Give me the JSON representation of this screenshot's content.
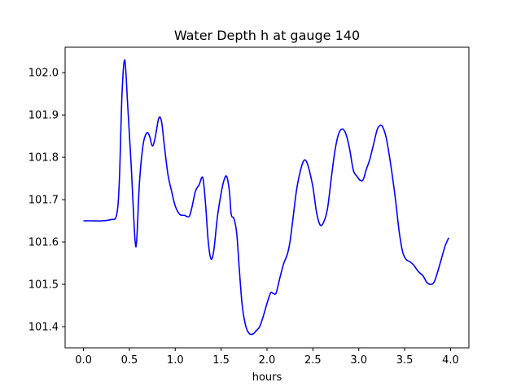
{
  "chart_data": {
    "type": "line",
    "title": "Water Depth h at gauge 140",
    "xlabel": "hours",
    "ylabel": "",
    "xlim": [
      -0.2,
      4.2
    ],
    "ylim": [
      101.35,
      102.06
    ],
    "xticks": [
      0.0,
      0.5,
      1.0,
      1.5,
      2.0,
      2.5,
      3.0,
      3.5,
      4.0
    ],
    "xtick_labels": [
      "0.0",
      "0.5",
      "1.0",
      "1.5",
      "2.0",
      "2.5",
      "3.0",
      "3.5",
      "4.0"
    ],
    "yticks": [
      101.4,
      101.5,
      101.6,
      101.7,
      101.8,
      101.9,
      102.0
    ],
    "ytick_labels": [
      "101.4",
      "101.5",
      "101.6",
      "101.7",
      "101.8",
      "101.9",
      "102.0"
    ],
    "grid": false,
    "series": [
      {
        "color": "#0000ff",
        "points": [
          [
            0.0,
            101.65
          ],
          [
            0.1,
            101.65
          ],
          [
            0.2,
            101.65
          ],
          [
            0.3,
            101.653
          ],
          [
            0.36,
            101.663
          ],
          [
            0.39,
            101.74
          ],
          [
            0.42,
            101.95
          ],
          [
            0.45,
            102.03
          ],
          [
            0.48,
            101.93
          ],
          [
            0.52,
            101.78
          ],
          [
            0.56,
            101.61
          ],
          [
            0.58,
            101.605
          ],
          [
            0.61,
            101.74
          ],
          [
            0.65,
            101.83
          ],
          [
            0.69,
            101.858
          ],
          [
            0.72,
            101.85
          ],
          [
            0.75,
            101.827
          ],
          [
            0.78,
            101.845
          ],
          [
            0.82,
            101.892
          ],
          [
            0.85,
            101.885
          ],
          [
            0.88,
            101.83
          ],
          [
            0.92,
            101.76
          ],
          [
            0.96,
            101.72
          ],
          [
            1.0,
            101.685
          ],
          [
            1.05,
            101.665
          ],
          [
            1.1,
            101.663
          ],
          [
            1.15,
            101.66
          ],
          [
            1.18,
            101.68
          ],
          [
            1.22,
            101.72
          ],
          [
            1.26,
            101.735
          ],
          [
            1.3,
            101.752
          ],
          [
            1.33,
            101.69
          ],
          [
            1.36,
            101.6
          ],
          [
            1.39,
            101.56
          ],
          [
            1.42,
            101.58
          ],
          [
            1.46,
            101.66
          ],
          [
            1.5,
            101.715
          ],
          [
            1.53,
            101.745
          ],
          [
            1.56,
            101.755
          ],
          [
            1.59,
            101.72
          ],
          [
            1.61,
            101.665
          ],
          [
            1.64,
            101.655
          ],
          [
            1.67,
            101.62
          ],
          [
            1.7,
            101.53
          ],
          [
            1.73,
            101.45
          ],
          [
            1.77,
            101.4
          ],
          [
            1.81,
            101.383
          ],
          [
            1.85,
            101.383
          ],
          [
            1.88,
            101.39
          ],
          [
            1.92,
            101.4
          ],
          [
            1.96,
            101.425
          ],
          [
            2.0,
            101.455
          ],
          [
            2.04,
            101.48
          ],
          [
            2.07,
            101.478
          ],
          [
            2.1,
            101.48
          ],
          [
            2.14,
            101.515
          ],
          [
            2.18,
            101.548
          ],
          [
            2.22,
            101.57
          ],
          [
            2.25,
            101.6
          ],
          [
            2.28,
            101.65
          ],
          [
            2.32,
            101.72
          ],
          [
            2.36,
            101.765
          ],
          [
            2.4,
            101.792
          ],
          [
            2.43,
            101.79
          ],
          [
            2.46,
            101.77
          ],
          [
            2.5,
            101.73
          ],
          [
            2.54,
            101.67
          ],
          [
            2.58,
            101.64
          ],
          [
            2.62,
            101.648
          ],
          [
            2.66,
            101.68
          ],
          [
            2.7,
            101.75
          ],
          [
            2.74,
            101.815
          ],
          [
            2.78,
            101.855
          ],
          [
            2.82,
            101.867
          ],
          [
            2.86,
            101.855
          ],
          [
            2.9,
            101.82
          ],
          [
            2.94,
            101.77
          ],
          [
            2.98,
            101.755
          ],
          [
            3.02,
            101.745
          ],
          [
            3.05,
            101.748
          ],
          [
            3.08,
            101.77
          ],
          [
            3.12,
            101.795
          ],
          [
            3.16,
            101.83
          ],
          [
            3.2,
            101.865
          ],
          [
            3.23,
            101.875
          ],
          [
            3.26,
            101.872
          ],
          [
            3.3,
            101.845
          ],
          [
            3.35,
            101.78
          ],
          [
            3.4,
            101.7
          ],
          [
            3.44,
            101.625
          ],
          [
            3.48,
            101.575
          ],
          [
            3.52,
            101.558
          ],
          [
            3.56,
            101.553
          ],
          [
            3.6,
            101.545
          ],
          [
            3.65,
            101.53
          ],
          [
            3.7,
            101.52
          ],
          [
            3.74,
            101.505
          ],
          [
            3.78,
            101.5
          ],
          [
            3.82,
            101.505
          ],
          [
            3.86,
            101.53
          ],
          [
            3.9,
            101.56
          ],
          [
            3.94,
            101.59
          ],
          [
            3.98,
            101.61
          ]
        ]
      }
    ]
  }
}
